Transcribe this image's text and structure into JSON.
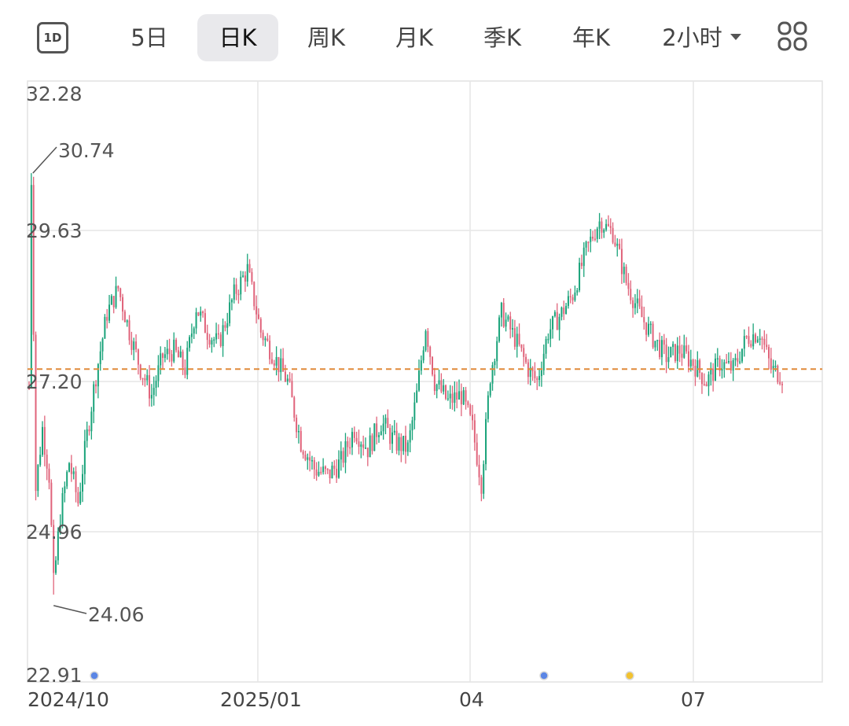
{
  "toolbar": {
    "left_icon": "1D",
    "tabs": [
      "5日",
      "日K",
      "周K",
      "月K",
      "季K",
      "年K"
    ],
    "active_tab": "日K",
    "interval_dropdown": "2小时",
    "right_icon": "grid-icon"
  },
  "colors": {
    "up": "#1aa37a",
    "down": "#e0637a",
    "reference_line": "#e08a3a",
    "marker_blue": "#5b86e5",
    "marker_yellow": "#f2c230"
  },
  "chart_data": {
    "type": "candlestick",
    "y_ticks": [
      "32.28",
      "29.63",
      "27.20",
      "24.96",
      "22.91"
    ],
    "ylim": [
      22.91,
      32.28
    ],
    "x_ticks": [
      "2024/10",
      "2025/01",
      "04",
      "07"
    ],
    "high_annotation": "30.74",
    "low_annotation": "24.06",
    "reference_price": 27.4,
    "grid": true,
    "event_markers": [
      {
        "color": "blue",
        "period": "2024/10"
      },
      {
        "color": "blue",
        "period": "04-05"
      },
      {
        "color": "yellow",
        "period": "05-06"
      }
    ]
  }
}
